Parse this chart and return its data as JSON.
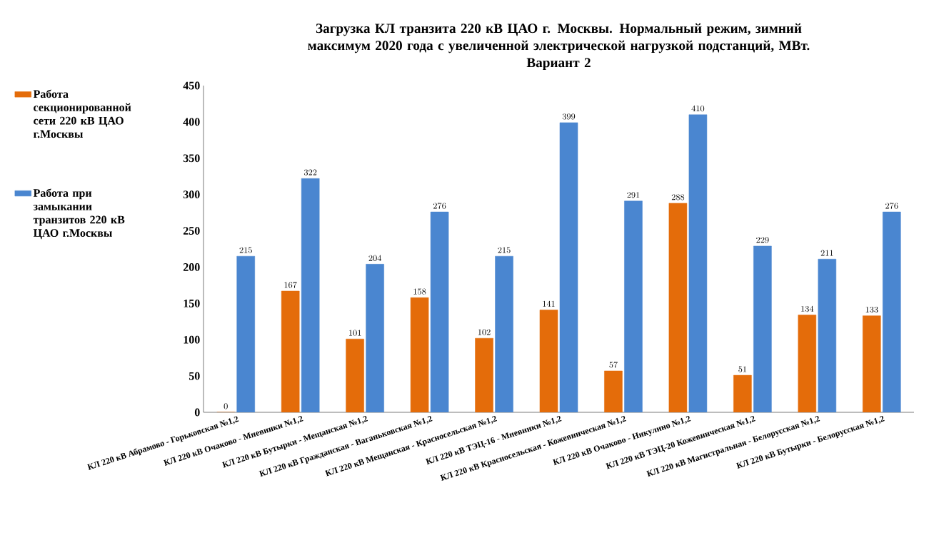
{
  "chart_data": {
    "type": "bar",
    "title": "Загрузка КЛ транзита 220 кВ ЦАО г. Москвы. Нормальный режим, зимний максимум 2020 года с увеличенной электрической нагрузкой подстанций, МВт.",
    "subtitle": "Вариант 2",
    "categories": [
      "КЛ 220 кВ Абрамово - Горьковская №1,2",
      "КЛ 220 кВ Очаково - Мневники №1,2",
      "КЛ 220 кВ Бутырки - Мещанская №1,2",
      "КЛ 220 кВ Гражданская - Ваганьковская №1,2",
      "КЛ 220 кВ Мещанская - Красносельская №1,2",
      "КЛ 220 кВ ТЭЦ-16 - Мневники №1,2",
      "КЛ 220 кВ Красносельская - Кожевническая №1,2",
      "КЛ 220 кВ Очаково - Никулино №1,2",
      "КЛ 220 кВ ТЭЦ-20 Кожевническая №1,2",
      "КЛ 220 кВ Магистральная - Белорусская №1,2",
      "КЛ 220 кВ Бутырки - Белорусская №1,2"
    ],
    "series": [
      {
        "name": "Работа секционированной сети 220 кВ ЦАО г.Москвы",
        "color": "#e46c0a",
        "values": [
          0,
          167,
          101,
          158,
          102,
          141,
          57,
          288,
          51,
          134,
          133
        ]
      },
      {
        "name": "Работа при замыкании транзитов 220 кВ ЦАО г.Москвы",
        "color": "#4a86d0",
        "values": [
          215,
          322,
          204,
          276,
          215,
          399,
          291,
          410,
          229,
          211,
          276
        ]
      }
    ],
    "ylim": [
      0,
      450
    ],
    "yticks": [
      0,
      50,
      100,
      150,
      200,
      250,
      300,
      350,
      400,
      450
    ],
    "data_labels": true,
    "legend": "left",
    "grid": false
  }
}
